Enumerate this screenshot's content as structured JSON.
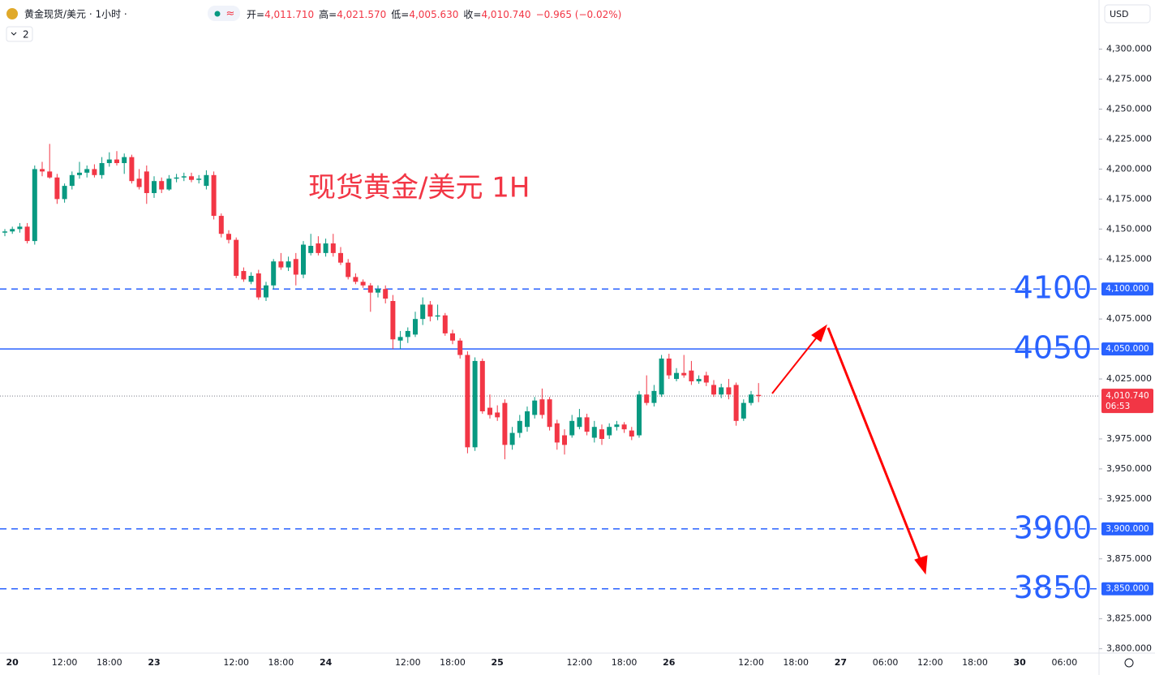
{
  "header": {
    "symbol": "黄金现货/美元 · 1小时 ·",
    "intervals": "2",
    "currency": "USD",
    "ohlc": [
      {
        "label": "开=",
        "value": "4,011.710"
      },
      {
        "label": "高=",
        "value": "4,021.570"
      },
      {
        "label": "低=",
        "value": "4,005.630"
      },
      {
        "label": "收=",
        "value": "4,010.740"
      }
    ],
    "change": "−0.965 (−0.02%)"
  },
  "chart_data": {
    "type": "candlestick",
    "title": "现货黄金/美元 1H",
    "up_color": "#089981",
    "down_color": "#f23645",
    "grid": false,
    "ylim": [
      3793,
      4341
    ],
    "yticks": [
      {
        "value": 4300,
        "label": "4,300.000"
      },
      {
        "value": 4275,
        "label": "4,275.000"
      },
      {
        "value": 4250,
        "label": "4,250.000"
      },
      {
        "value": 4225,
        "label": "4,225.000"
      },
      {
        "value": 4200,
        "label": "4,200.000"
      },
      {
        "value": 4175,
        "label": "4,175.000"
      },
      {
        "value": 4150,
        "label": "4,150.000"
      },
      {
        "value": 4125,
        "label": "4,125.000"
      },
      {
        "value": 4075,
        "label": "4,075.000"
      },
      {
        "value": 4025,
        "label": "4,025.000"
      },
      {
        "value": 3975,
        "label": "3,975.000"
      },
      {
        "value": 3950,
        "label": "3,950.000"
      },
      {
        "value": 3925,
        "label": "3,925.000"
      },
      {
        "value": 3875,
        "label": "3,875.000"
      },
      {
        "value": 3825,
        "label": "3,825.000"
      },
      {
        "value": 3800,
        "label": "3,800.000"
      }
    ],
    "levels": [
      {
        "value": 4100,
        "label": "4100",
        "axis_label": "4,100.000",
        "style": "dashed"
      },
      {
        "value": 4050,
        "label": "4050",
        "axis_label": "4,050.000",
        "style": "solid"
      },
      {
        "value": 3900,
        "label": "3900",
        "axis_label": "3,900.000",
        "style": "dashed"
      },
      {
        "value": 3850,
        "label": "3850",
        "axis_label": "3,850.000",
        "style": "dashed"
      }
    ],
    "level_color": "#2962ff",
    "last_price": {
      "value": 4010.74,
      "label": "4,010.740",
      "countdown": "06:53"
    },
    "categories": [
      null,
      "20",
      null,
      null,
      null,
      null,
      null,
      null,
      "12:00",
      null,
      null,
      null,
      null,
      null,
      "18:00",
      null,
      null,
      null,
      null,
      null,
      "23",
      null,
      null,
      null,
      null,
      null,
      null,
      null,
      null,
      null,
      null,
      "12:00",
      null,
      null,
      null,
      null,
      null,
      "18:00",
      null,
      null,
      null,
      null,
      null,
      "24",
      null,
      null,
      null,
      null,
      null,
      null,
      null,
      null,
      null,
      null,
      "12:00",
      null,
      null,
      null,
      null,
      null,
      "18:00",
      null,
      null,
      null,
      null,
      null,
      "25",
      null,
      null,
      null,
      null,
      null,
      null,
      null,
      null,
      null,
      null,
      "12:00",
      null,
      null,
      null,
      null,
      null,
      "18:00",
      null,
      null,
      null,
      null,
      null,
      "26",
      null,
      null,
      null,
      null,
      null,
      null,
      null,
      null,
      null,
      null,
      "12:00",
      null,
      null,
      null,
      null,
      null,
      "18:00",
      null,
      null,
      null,
      null,
      null,
      "27",
      null,
      null,
      null,
      null,
      null,
      "06:00",
      null,
      null,
      null,
      null,
      null,
      "12:00",
      null,
      null,
      null,
      null,
      null,
      "18:00",
      null,
      null,
      null,
      null,
      null,
      "30",
      null,
      null,
      null,
      null,
      null,
      "06:00"
    ],
    "ohlc": [
      [
        4147,
        4150,
        4144,
        4148
      ],
      [
        4148,
        4152,
        4146,
        4150
      ],
      [
        4150,
        4155,
        4147,
        4152
      ],
      [
        4152,
        4155,
        4138,
        4140
      ],
      [
        4140,
        4203,
        4137,
        4200
      ],
      [
        4200,
        4206,
        4194,
        4198
      ],
      [
        4198,
        4221,
        4192,
        4193
      ],
      [
        4193,
        4196,
        4171,
        4175
      ],
      [
        4175,
        4188,
        4172,
        4186
      ],
      [
        4186,
        4198,
        4183,
        4195
      ],
      [
        4195,
        4206,
        4192,
        4197
      ],
      [
        4197,
        4203,
        4193,
        4200
      ],
      [
        4200,
        4204,
        4193,
        4195
      ],
      [
        4195,
        4210,
        4192,
        4205
      ],
      [
        4205,
        4214,
        4202,
        4208
      ],
      [
        4208,
        4215,
        4203,
        4205
      ],
      [
        4205,
        4213,
        4196,
        4210
      ],
      [
        4210,
        4212,
        4188,
        4190
      ],
      [
        4192,
        4200,
        4183,
        4185
      ],
      [
        4198,
        4203,
        4171,
        4180
      ],
      [
        4180,
        4194,
        4176,
        4190
      ],
      [
        4190,
        4193,
        4180,
        4183
      ],
      [
        4183,
        4195,
        4182,
        4192
      ],
      [
        4192,
        4196,
        4189,
        4193
      ],
      [
        4193,
        4197,
        4190,
        4194
      ],
      [
        4194,
        4197,
        4189,
        4191
      ],
      [
        4191,
        4195,
        4188,
        4192
      ],
      [
        4186,
        4199,
        4183,
        4195
      ],
      [
        4195,
        4198,
        4158,
        4161
      ],
      [
        4161,
        4163,
        4143,
        4146
      ],
      [
        4146,
        4149,
        4138,
        4141
      ],
      [
        4141,
        4143,
        4109,
        4111
      ],
      [
        4115,
        4118,
        4106,
        4108
      ],
      [
        4106,
        4114,
        4104,
        4111
      ],
      [
        4113,
        4116,
        4091,
        4093
      ],
      [
        4093,
        4106,
        4090,
        4103
      ],
      [
        4103,
        4125,
        4100,
        4123
      ],
      [
        4123,
        4130,
        4116,
        4118
      ],
      [
        4118,
        4127,
        4115,
        4123
      ],
      [
        4125,
        4130,
        4103,
        4112
      ],
      [
        4112,
        4140,
        4109,
        4137
      ],
      [
        4130,
        4146,
        4128,
        4136
      ],
      [
        4138,
        4144,
        4128,
        4130
      ],
      [
        4130,
        4142,
        4127,
        4138
      ],
      [
        4138,
        4146,
        4127,
        4130
      ],
      [
        4130,
        4135,
        4120,
        4122
      ],
      [
        4122,
        4125,
        4108,
        4110
      ],
      [
        4110,
        4113,
        4104,
        4106
      ],
      [
        4106,
        4108,
        4101,
        4103
      ],
      [
        4103,
        4105,
        4081,
        4097
      ],
      [
        4097,
        4103,
        4093,
        4100
      ],
      [
        4100,
        4103,
        4088,
        4092
      ],
      [
        4090,
        4095,
        4050,
        4058
      ],
      [
        4057,
        4065,
        4050,
        4060
      ],
      [
        4060,
        4068,
        4055,
        4065
      ],
      [
        4062,
        4081,
        4060,
        4075
      ],
      [
        4075,
        4093,
        4070,
        4087
      ],
      [
        4087,
        4090,
        4073,
        4077
      ],
      [
        4077,
        4087,
        4074,
        4078
      ],
      [
        4078,
        4080,
        4061,
        4063
      ],
      [
        4063,
        4066,
        4054,
        4057
      ],
      [
        4057,
        4059,
        4042,
        4045
      ],
      [
        4045,
        4048,
        3963,
        3968
      ],
      [
        3968,
        4043,
        3965,
        4040
      ],
      [
        4040,
        4042,
        3996,
        3998
      ],
      [
        4001,
        4012,
        3992,
        3995
      ],
      [
        3997,
        4003,
        3990,
        3993
      ],
      [
        4005,
        4008,
        3958,
        3970
      ],
      [
        3970,
        3985,
        3966,
        3980
      ],
      [
        3980,
        3995,
        3976,
        3990
      ],
      [
        3985,
        4002,
        3981,
        3998
      ],
      [
        3995,
        4010,
        3992,
        4007
      ],
      [
        4008,
        4017,
        3992,
        3995
      ],
      [
        4008,
        4010,
        3982,
        3985
      ],
      [
        3988,
        3991,
        3966,
        3972
      ],
      [
        3978,
        3983,
        3962,
        3970
      ],
      [
        3978,
        3995,
        3976,
        3990
      ],
      [
        3985,
        4000,
        3983,
        3993
      ],
      [
        3993,
        3996,
        3978,
        3981
      ],
      [
        3976,
        3990,
        3972,
        3985
      ],
      [
        3983,
        3987,
        3970,
        3975
      ],
      [
        3978,
        3988,
        3975,
        3985
      ],
      [
        3985,
        3990,
        3982,
        3987
      ],
      [
        3987,
        3989,
        3980,
        3983
      ],
      [
        3982,
        3985,
        3974,
        3977
      ],
      [
        3978,
        4015,
        3976,
        4012
      ],
      [
        4012,
        4028,
        4003,
        4005
      ],
      [
        4005,
        4020,
        4002,
        4015
      ],
      [
        4012,
        4045,
        4010,
        4042
      ],
      [
        4042,
        4046,
        4025,
        4028
      ],
      [
        4025,
        4034,
        4023,
        4030
      ],
      [
        4030,
        4045,
        4026,
        4028
      ],
      [
        4032,
        4040,
        4020,
        4023
      ],
      [
        4023,
        4028,
        4021,
        4025
      ],
      [
        4028,
        4031,
        4019,
        4022
      ],
      [
        4020,
        4024,
        4010,
        4012
      ],
      [
        4012,
        4021,
        4009,
        4018
      ],
      [
        4018,
        4025,
        4008,
        4012
      ],
      [
        4020,
        4022,
        3986,
        3990
      ],
      [
        3992,
        4008,
        3990,
        4005
      ],
      [
        4005,
        4015,
        4003,
        4012
      ],
      [
        4011.71,
        4021.57,
        4005.63,
        4010.74
      ],
      null,
      null,
      null,
      null,
      null,
      null,
      null,
      null,
      null,
      null,
      null,
      null,
      null,
      null,
      null,
      null,
      null,
      null,
      null,
      null,
      null,
      null,
      null,
      null,
      null,
      null,
      null,
      null,
      null,
      null,
      null,
      null,
      null,
      null,
      null,
      null,
      null,
      null,
      null,
      null,
      null
    ]
  }
}
